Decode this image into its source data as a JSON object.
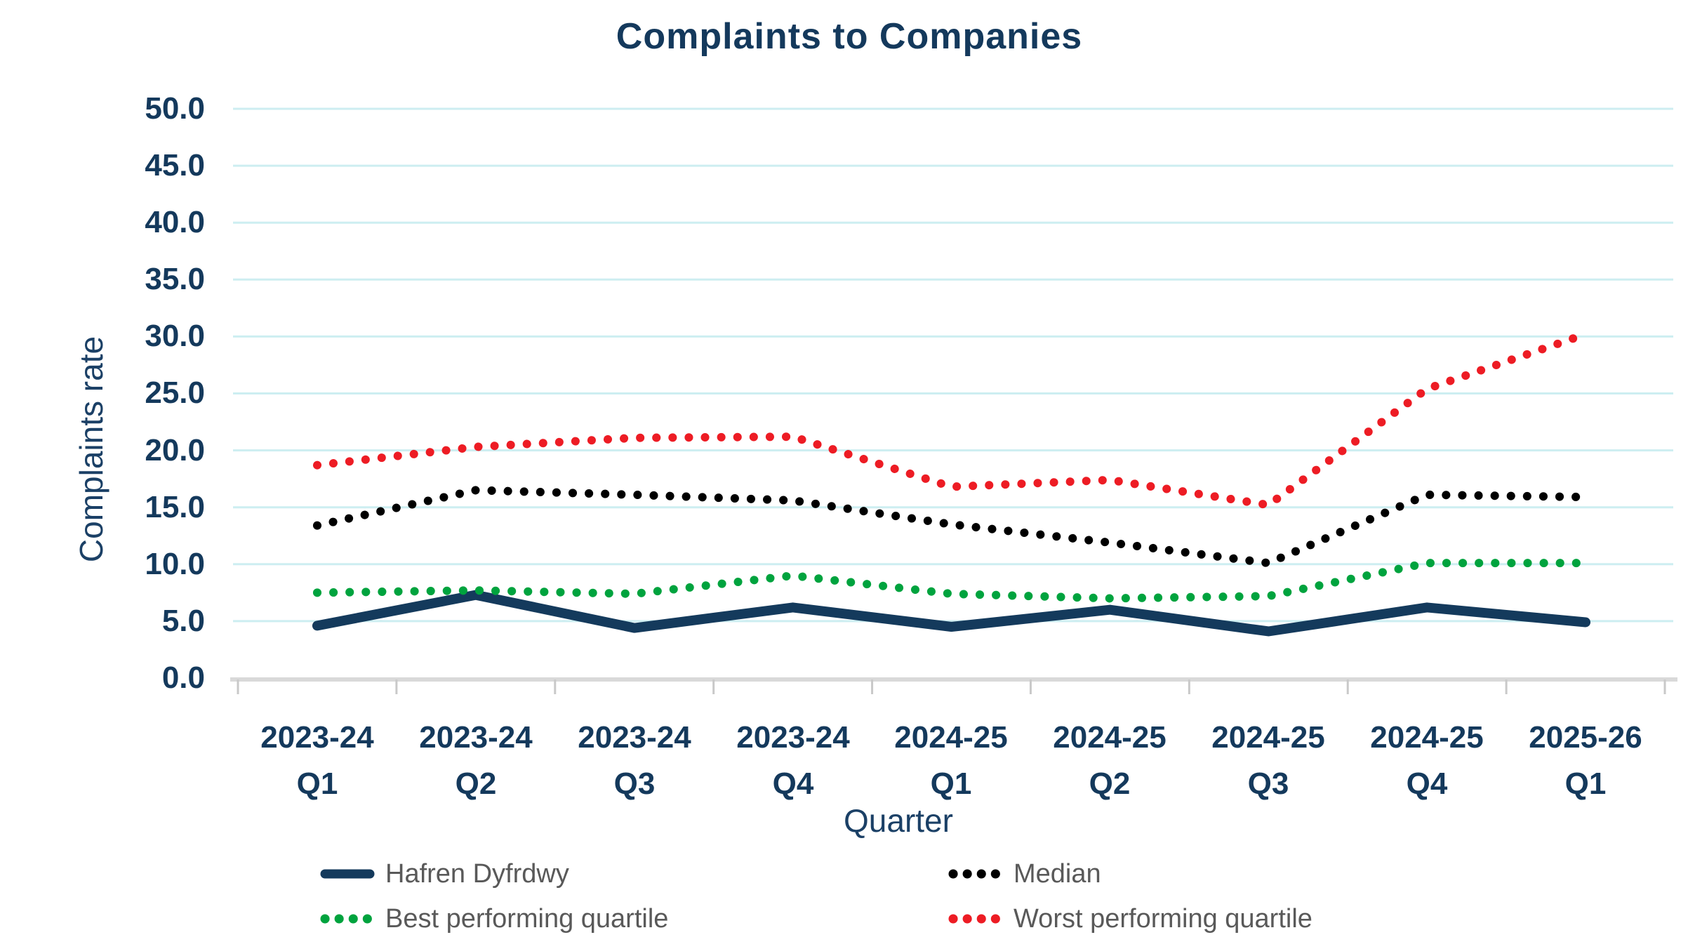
{
  "chart_data": {
    "type": "line",
    "title": "Complaints to Companies",
    "xlabel": "Quarter",
    "ylabel": "Complaints rate",
    "ylim": [
      0,
      50
    ],
    "ytick_step": 5,
    "ytick_labels": [
      "0.0",
      "5.0",
      "10.0",
      "15.0",
      "20.0",
      "25.0",
      "30.0",
      "35.0",
      "40.0",
      "45.0",
      "50.0"
    ],
    "grid": "horizontal-only",
    "legend_position": "bottom, 2 columns",
    "categories": [
      {
        "line1": "2023-24",
        "line2": "Q1"
      },
      {
        "line1": "2023-24",
        "line2": "Q2"
      },
      {
        "line1": "2023-24",
        "line2": "Q3"
      },
      {
        "line1": "2023-24",
        "line2": "Q4"
      },
      {
        "line1": "2024-25",
        "line2": "Q1"
      },
      {
        "line1": "2024-25",
        "line2": "Q2"
      },
      {
        "line1": "2024-25",
        "line2": "Q3"
      },
      {
        "line1": "2024-25",
        "line2": "Q4"
      },
      {
        "line1": "2025-26",
        "line2": "Q1"
      }
    ],
    "series": [
      {
        "name": "Hafren Dyfrdwy",
        "color": "#143A5C",
        "line_style": "solid",
        "values": [
          4.6,
          7.3,
          4.4,
          6.2,
          4.5,
          6.0,
          4.1,
          6.2,
          4.9
        ]
      },
      {
        "name": "Median",
        "color": "#000000",
        "line_style": "dotted",
        "values": [
          13.4,
          16.5,
          16.1,
          15.6,
          13.5,
          11.9,
          10.1,
          16.1,
          15.9
        ]
      },
      {
        "name": "Best performing quartile",
        "color": "#00A33E",
        "line_style": "dotted",
        "values": [
          7.5,
          7.7,
          7.4,
          9.0,
          7.4,
          7.0,
          7.2,
          10.1,
          10.1
        ]
      },
      {
        "name": "Worst performing quartile",
        "color": "#ED1C24",
        "line_style": "dotted",
        "values": [
          18.7,
          20.3,
          21.1,
          21.2,
          16.8,
          17.4,
          15.2,
          25.4,
          30.2
        ]
      }
    ],
    "styling": {
      "grid_color": "#CDEEF1",
      "axis_line_color": "#D9D9D9",
      "tick_mark_color": "#C9C9C9",
      "title_color": "#14395C",
      "axis_label_color": "#14395C",
      "legend_text_color": "#595959",
      "background": "#FFFFFF"
    }
  }
}
